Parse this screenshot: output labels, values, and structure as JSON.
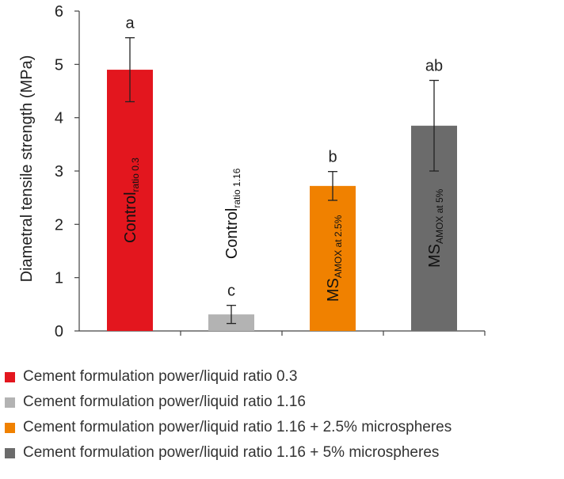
{
  "chart_data": {
    "type": "bar",
    "ylabel": "Diametral tensile strength (MPa)",
    "ylim": [
      0,
      6
    ],
    "yticks": [
      0,
      1,
      2,
      3,
      4,
      5,
      6
    ],
    "grid": false,
    "legend_position": "bottom",
    "bars": [
      {
        "label_main": "Control",
        "label_sub": "ratio 0.3",
        "value": 4.9,
        "error": 0.6,
        "letter": "a",
        "color": "#e3161e",
        "label_color": "#111111"
      },
      {
        "label_main": "Control",
        "label_sub": "ratio 1.16",
        "value": 0.31,
        "error": 0.17,
        "letter": "c",
        "color": "#b3b3b3",
        "label_color": "#111111"
      },
      {
        "label_main": "MS",
        "label_sub": "AMOX at 2.5%",
        "value": 2.72,
        "error": 0.27,
        "letter": "b",
        "color": "#f08100",
        "label_color": "#111111"
      },
      {
        "label_main": "MS",
        "label_sub": "AMOX at 5%",
        "value": 3.85,
        "error": 0.85,
        "letter": "ab",
        "color": "#6b6b6b",
        "label_color": "#111111"
      }
    ]
  },
  "legend": [
    {
      "label": "Cement formulation power/liquid ratio 0.3",
      "color": "#e3161e"
    },
    {
      "label": "Cement formulation power/liquid ratio 1.16",
      "color": "#b3b3b3"
    },
    {
      "label": "Cement formulation power/liquid ratio 1.16 + 2.5% microspheres",
      "color": "#f08100"
    },
    {
      "label": "Cement formulation power/liquid ratio 1.16 + 5% microspheres",
      "color": "#6b6b6b"
    }
  ]
}
